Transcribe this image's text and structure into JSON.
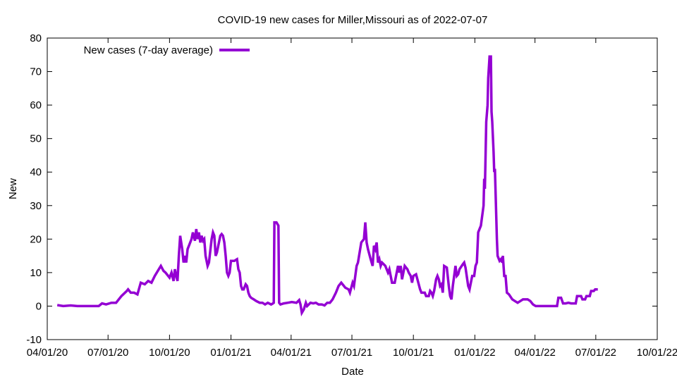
{
  "chart_data": {
    "type": "line",
    "title": "COVID-19 new cases for Miller,Missouri as of 2022-07-07",
    "xlabel": "Date",
    "ylabel": "New",
    "x_unit": "days since 04/01/20",
    "xlim": [
      0,
      913
    ],
    "ylim": [
      -10,
      80
    ],
    "yticks": [
      -10,
      0,
      10,
      20,
      30,
      40,
      50,
      60,
      70,
      80
    ],
    "xticks": [
      {
        "day": 0,
        "label": "04/01/20"
      },
      {
        "day": 91,
        "label": "07/01/20"
      },
      {
        "day": 183,
        "label": "10/01/20"
      },
      {
        "day": 275,
        "label": "01/01/21"
      },
      {
        "day": 365,
        "label": "04/01/21"
      },
      {
        "day": 456,
        "label": "07/01/21"
      },
      {
        "day": 548,
        "label": "10/01/21"
      },
      {
        "day": 640,
        "label": "01/01/22"
      },
      {
        "day": 730,
        "label": "04/01/22"
      },
      {
        "day": 821,
        "label": "07/01/22"
      },
      {
        "day": 913,
        "label": "10/01/22"
      }
    ],
    "grid": false,
    "legend_position": "top-left",
    "series": [
      {
        "name": "New cases (7-day average)",
        "color": "#9400D3",
        "points": [
          [
            15,
            0.3
          ],
          [
            24,
            0
          ],
          [
            35,
            0.2
          ],
          [
            45,
            0
          ],
          [
            77,
            0
          ],
          [
            82,
            0.8
          ],
          [
            88,
            0.5
          ],
          [
            96,
            1
          ],
          [
            103,
            1
          ],
          [
            111,
            3
          ],
          [
            119,
            4.5
          ],
          [
            121,
            5
          ],
          [
            125,
            4
          ],
          [
            130,
            4
          ],
          [
            135,
            3.5
          ],
          [
            140,
            7
          ],
          [
            146,
            6.5
          ],
          [
            151,
            7.5
          ],
          [
            156,
            7
          ],
          [
            161,
            9
          ],
          [
            167,
            11
          ],
          [
            170,
            12
          ],
          [
            174,
            10.5
          ],
          [
            177,
            10
          ],
          [
            183,
            8.5
          ],
          [
            186,
            10
          ],
          [
            189,
            7.5
          ],
          [
            191,
            11
          ],
          [
            193,
            9
          ],
          [
            195,
            7.5
          ],
          [
            197,
            15
          ],
          [
            199,
            21
          ],
          [
            202,
            17
          ],
          [
            204,
            13
          ],
          [
            206,
            15
          ],
          [
            208,
            13
          ],
          [
            210,
            17
          ],
          [
            212,
            18
          ],
          [
            216,
            20
          ],
          [
            218,
            22
          ],
          [
            221,
            19.5
          ],
          [
            223,
            23
          ],
          [
            225,
            20
          ],
          [
            227,
            22
          ],
          [
            229,
            19
          ],
          [
            231,
            21
          ],
          [
            233,
            19.5
          ],
          [
            235,
            20
          ],
          [
            237,
            15
          ],
          [
            240,
            12
          ],
          [
            242,
            13
          ],
          [
            246,
            20
          ],
          [
            248,
            22
          ],
          [
            250,
            21
          ],
          [
            252,
            15
          ],
          [
            254,
            16
          ],
          [
            259,
            21
          ],
          [
            261,
            21.5
          ],
          [
            263,
            21
          ],
          [
            265,
            19
          ],
          [
            267,
            15
          ],
          [
            269,
            10
          ],
          [
            271,
            9
          ],
          [
            273,
            10
          ],
          [
            275,
            13.5
          ],
          [
            280,
            13.5
          ],
          [
            284,
            14
          ],
          [
            286,
            11
          ],
          [
            288,
            10
          ],
          [
            290,
            6
          ],
          [
            292,
            5
          ],
          [
            294,
            5
          ],
          [
            297,
            6.5
          ],
          [
            299,
            6
          ],
          [
            301,
            4
          ],
          [
            303,
            3
          ],
          [
            305,
            2.5
          ],
          [
            309,
            2
          ],
          [
            313,
            1.5
          ],
          [
            318,
            1
          ],
          [
            322,
            1
          ],
          [
            326,
            0.5
          ],
          [
            330,
            1
          ],
          [
            335,
            0.5
          ],
          [
            337,
            0.7
          ],
          [
            339,
            1
          ],
          [
            340,
            25
          ],
          [
            343,
            25
          ],
          [
            346,
            24
          ],
          [
            347,
            1
          ],
          [
            349,
            0.5
          ],
          [
            354,
            0.8
          ],
          [
            360,
            1
          ],
          [
            366,
            1.2
          ],
          [
            373,
            1
          ],
          [
            377,
            1.8
          ],
          [
            379,
            0.5
          ],
          [
            381,
            -2
          ],
          [
            384,
            -1
          ],
          [
            387,
            1
          ],
          [
            389,
            0
          ],
          [
            394,
            1
          ],
          [
            398,
            0.8
          ],
          [
            402,
            1
          ],
          [
            406,
            0.5
          ],
          [
            411,
            0.5
          ],
          [
            415,
            0.2
          ],
          [
            419,
            1
          ],
          [
            423,
            1
          ],
          [
            427,
            2
          ],
          [
            432,
            4
          ],
          [
            436,
            6
          ],
          [
            440,
            7
          ],
          [
            444,
            6
          ],
          [
            446,
            5.5
          ],
          [
            451,
            5
          ],
          [
            453,
            4
          ],
          [
            457,
            7
          ],
          [
            459,
            6
          ],
          [
            463,
            12
          ],
          [
            465,
            13
          ],
          [
            470,
            19
          ],
          [
            474,
            20
          ],
          [
            476,
            25
          ],
          [
            478,
            19
          ],
          [
            480,
            17
          ],
          [
            484,
            14
          ],
          [
            487,
            12
          ],
          [
            489,
            18
          ],
          [
            491,
            17
          ],
          [
            493,
            19
          ],
          [
            495,
            13
          ],
          [
            497,
            14
          ],
          [
            499,
            12
          ],
          [
            501,
            13
          ],
          [
            506,
            12
          ],
          [
            510,
            10
          ],
          [
            512,
            11
          ],
          [
            516,
            7
          ],
          [
            520,
            7
          ],
          [
            525,
            12
          ],
          [
            527,
            10
          ],
          [
            529,
            12
          ],
          [
            531,
            8
          ],
          [
            535,
            12
          ],
          [
            539,
            11
          ],
          [
            541,
            10
          ],
          [
            544,
            9
          ],
          [
            546,
            7
          ],
          [
            548,
            9
          ],
          [
            552,
            9.5
          ],
          [
            554,
            8
          ],
          [
            558,
            5
          ],
          [
            560,
            4
          ],
          [
            565,
            4
          ],
          [
            567,
            3
          ],
          [
            571,
            3
          ],
          [
            573,
            4.5
          ],
          [
            575,
            4
          ],
          [
            577,
            3
          ],
          [
            579,
            4.5
          ],
          [
            582,
            8
          ],
          [
            584,
            9
          ],
          [
            586,
            8
          ],
          [
            588,
            6
          ],
          [
            590,
            6.5
          ],
          [
            592,
            4
          ],
          [
            594,
            12
          ],
          [
            598,
            11.5
          ],
          [
            601,
            6
          ],
          [
            603,
            3
          ],
          [
            605,
            2
          ],
          [
            607,
            6
          ],
          [
            609,
            9
          ],
          [
            611,
            12
          ],
          [
            613,
            9
          ],
          [
            615,
            9.5
          ],
          [
            617,
            11
          ],
          [
            622,
            12.5
          ],
          [
            624,
            13
          ],
          [
            626,
            11.5
          ],
          [
            630,
            6
          ],
          [
            632,
            5
          ],
          [
            634,
            7
          ],
          [
            636,
            9
          ],
          [
            639,
            9
          ],
          [
            641,
            12
          ],
          [
            643,
            13
          ],
          [
            645,
            22
          ],
          [
            649,
            24
          ],
          [
            653,
            30
          ],
          [
            654,
            38
          ],
          [
            655,
            35
          ],
          [
            657,
            55
          ],
          [
            659,
            60
          ],
          [
            660,
            68
          ],
          [
            662,
            74.5
          ],
          [
            664,
            74.5
          ],
          [
            665,
            58
          ],
          [
            666,
            55
          ],
          [
            668,
            46
          ],
          [
            669,
            40
          ],
          [
            670,
            41
          ],
          [
            673,
            20
          ],
          [
            674,
            15
          ],
          [
            677,
            13.5
          ],
          [
            679,
            14
          ],
          [
            681,
            13
          ],
          [
            682,
            15
          ],
          [
            684,
            9
          ],
          [
            686,
            9
          ],
          [
            688,
            4
          ],
          [
            691,
            3.5
          ],
          [
            696,
            2
          ],
          [
            700,
            1.5
          ],
          [
            704,
            1
          ],
          [
            708,
            1.5
          ],
          [
            712,
            2
          ],
          [
            719,
            2
          ],
          [
            723,
            1.5
          ],
          [
            727,
            0.5
          ],
          [
            731,
            0
          ],
          [
            753,
            0
          ],
          [
            763,
            0
          ],
          [
            765,
            2.5
          ],
          [
            769,
            2.5
          ],
          [
            772,
            0.8
          ],
          [
            776,
            0.8
          ],
          [
            780,
            1
          ],
          [
            784,
            0.8
          ],
          [
            791,
            0.8
          ],
          [
            793,
            3
          ],
          [
            799,
            3
          ],
          [
            801,
            2
          ],
          [
            805,
            2
          ],
          [
            807,
            3
          ],
          [
            812,
            3
          ],
          [
            814,
            4.5
          ],
          [
            818,
            4.5
          ],
          [
            820,
            5
          ],
          [
            824,
            5
          ]
        ]
      }
    ]
  }
}
